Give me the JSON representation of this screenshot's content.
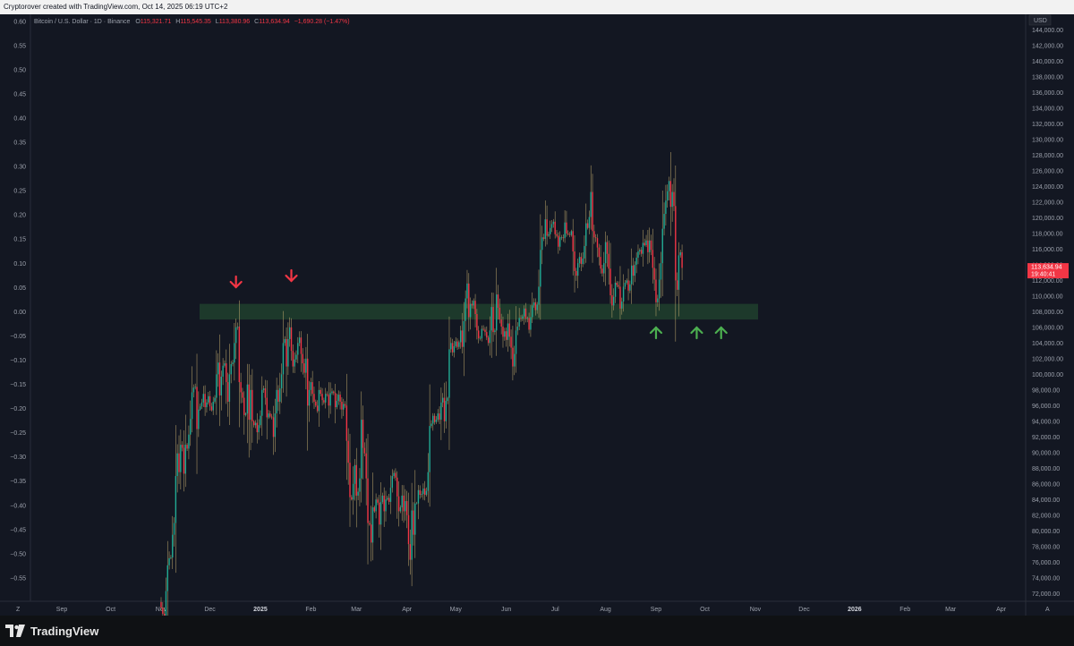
{
  "header": {
    "credit": "Cryptorover created with TradingView.com, Oct 14, 2025 06:19 UTC+2"
  },
  "legend": {
    "symbol": "Bitcoin / U.S. Dollar · 1D · Binance",
    "o_label": "O",
    "o_value": "115,321.71",
    "h_label": "H",
    "h_value": "115,545.35",
    "l_label": "L",
    "l_value": "113,380.96",
    "c_label": "C",
    "c_value": "113,634.94",
    "change": "−1,690.28 (−1.47%)"
  },
  "price_axis": {
    "currency": "USD",
    "ticks": [
      "144,000.00",
      "142,000.00",
      "140,000.00",
      "138,000.00",
      "136,000.00",
      "134,000.00",
      "132,000.00",
      "130,000.00",
      "128,000.00",
      "126,000.00",
      "124,000.00",
      "122,000.00",
      "120,000.00",
      "118,000.00",
      "116,000.00",
      "114,000.00",
      "112,000.00",
      "110,000.00",
      "108,000.00",
      "106,000.00",
      "104,000.00",
      "102,000.00",
      "100,000.00",
      "98,000.00",
      "96,000.00",
      "94,000.00",
      "92,000.00",
      "90,000.00",
      "88,000.00",
      "86,000.00",
      "84,000.00",
      "82,000.00",
      "80,000.00",
      "78,000.00",
      "76,000.00",
      "74,000.00",
      "72,000.00"
    ],
    "current_price": "113,634.94",
    "countdown": "19:40:41"
  },
  "percent_axis": {
    "ticks": [
      "0.60",
      "0.55",
      "0.50",
      "0.45",
      "0.40",
      "0.35",
      "0.30",
      "0.25",
      "0.20",
      "0.15",
      "0.10",
      "0.05",
      "0.00",
      "−0.05",
      "−0.10",
      "−0.15",
      "−0.20",
      "−0.25",
      "−0.30",
      "−0.35",
      "−0.40",
      "−0.45",
      "−0.50",
      "−0.55"
    ]
  },
  "time_axis": {
    "labels": [
      "Sep",
      "Oct",
      "Nov",
      "Dec",
      "2025",
      "Feb",
      "Mar",
      "Apr",
      "May",
      "Jun",
      "Jul",
      "Aug",
      "Sep",
      "Oct",
      "Nov",
      "Dec",
      "2026",
      "Feb",
      "Mar",
      "Apr"
    ],
    "left_corner": "Z",
    "right_corner": "A"
  },
  "footer": {
    "brand": "TradingView"
  },
  "colors": {
    "up": "#22ab94",
    "down": "#f23645",
    "wick": "#b8a36a",
    "zone": "#1e3b2c",
    "arrow_down": "#f23645",
    "arrow_up": "#4caf50"
  },
  "chart_data": {
    "type": "candlestick",
    "x_start": "2024-11-01",
    "y_unit": "USD",
    "ylim": [
      71000,
      146000
    ],
    "support_zone": [
      107000,
      109000
    ],
    "down_arrows_dates": [
      "2024-12-17",
      "2025-01-20"
    ],
    "up_arrows_dates": [
      "2025-09-01",
      "2025-09-26",
      "2025-10-11"
    ],
    "closes": [
      70200,
      69400,
      68500,
      72300,
      75600,
      76500,
      76600,
      79500,
      81000,
      87000,
      89900,
      87500,
      91000,
      90600,
      87300,
      91000,
      90500,
      92300,
      94300,
      97700,
      98300,
      98400,
      93000,
      95500,
      95900,
      96400,
      97500,
      95800,
      96400,
      97200,
      95900,
      95400,
      96500,
      97000,
      100000,
      101500,
      97300,
      99700,
      101100,
      101400,
      99000,
      96500,
      100000,
      101300,
      101500,
      104000,
      106000,
      106100,
      99000,
      97700,
      97000,
      94800,
      95000,
      98700,
      94200,
      98000,
      94000,
      93500,
      93800,
      92600,
      93500,
      94700,
      98000,
      98200,
      97000,
      94500,
      95000,
      94600,
      94500,
      92000,
      95000,
      98000,
      96500,
      98200,
      100000,
      104000,
      104500,
      101000,
      104500,
      106000,
      103000,
      101000,
      101900,
      102500,
      104000,
      104700,
      102600,
      101400,
      100200,
      102000,
      96000,
      98000,
      99000,
      97500,
      96500,
      96000,
      95300,
      98000,
      97500,
      96700,
      96400,
      97500,
      97400,
      96000,
      97600,
      97800,
      97600,
      95800,
      96600,
      97400,
      96500,
      95500,
      96200,
      96000,
      91500,
      88700,
      84300,
      84000,
      86000,
      88400,
      84500,
      85000,
      86700,
      94200,
      90600,
      89900,
      86700,
      81000,
      80800,
      78500,
      83000,
      82500,
      84000,
      83600,
      80800,
      83700,
      84500,
      82500,
      84000,
      84200,
      83700,
      85500,
      87000,
      87400,
      86800,
      84400,
      82500,
      83000,
      84500,
      82500,
      83800,
      82000,
      78300,
      76300,
      82600,
      79500,
      83500,
      83500,
      85200,
      84600,
      84700,
      85400,
      84600,
      85100,
      87500,
      93400,
      93700,
      94700,
      93900,
      94200,
      95000,
      94200,
      96400,
      97000,
      94000,
      96600,
      97000,
      103200,
      104000,
      102800,
      103600,
      104200,
      103500,
      104100,
      105600,
      103500,
      106800,
      109700,
      111600,
      107300,
      109000,
      108800,
      109400,
      107700,
      105600,
      104600,
      104600,
      105800,
      105700,
      105400,
      104700,
      104000,
      105600,
      108600,
      105400,
      105600,
      110200,
      108500,
      107000,
      106100,
      104800,
      105500,
      104400,
      106500,
      104800,
      103400,
      101000,
      102600,
      105600,
      106100,
      107200,
      107100,
      107400,
      108400,
      107100,
      107200,
      105700,
      107300,
      108800,
      109200,
      108200,
      108900,
      111200,
      115900,
      117500,
      117300,
      119800,
      117700,
      117900,
      118700,
      119200,
      119500,
      117900,
      117700,
      116300,
      117500,
      117500,
      117400,
      119400,
      118000,
      117900,
      117800,
      118300,
      115700,
      113200,
      112600,
      114200,
      115000,
      114100,
      114800,
      116400,
      119300,
      118700,
      120100,
      123300,
      118300,
      117500,
      117400,
      116200,
      115000,
      113500,
      112900,
      114200,
      116900,
      115400,
      113500,
      110100,
      108800,
      109900,
      111700,
      111400,
      111200,
      108400,
      109300,
      111200,
      111700,
      112000,
      110700,
      111500,
      113900,
      112600,
      114000,
      114900,
      115700,
      115900,
      115400,
      116800,
      116500,
      117100,
      115600,
      117100,
      115900,
      113600,
      112100,
      109200,
      109700,
      112100,
      114200,
      118600,
      120500,
      122200,
      123400,
      124700,
      121400,
      123300,
      121500,
      112000,
      110800,
      115200,
      115600,
      113600
    ]
  }
}
